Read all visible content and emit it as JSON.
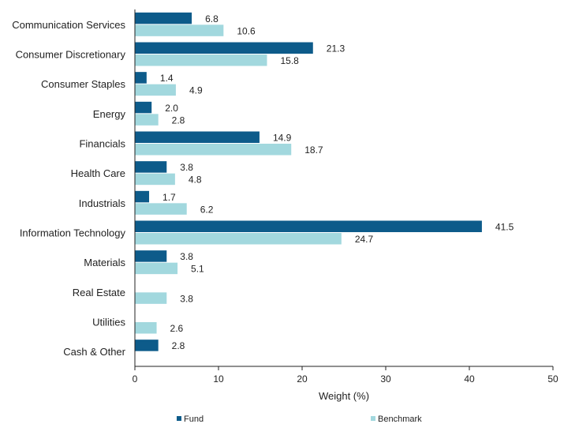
{
  "chart_data": {
    "type": "bar",
    "orientation": "horizontal",
    "categories": [
      "Communication Services",
      "Consumer Discretionary",
      "Consumer Staples",
      "Energy",
      "Financials",
      "Health Care",
      "Industrials",
      "Information Technology",
      "Materials",
      "Real Estate",
      "Utilities",
      "Cash & Other"
    ],
    "series": [
      {
        "name": "Fund",
        "color": "#0d5b8a",
        "values": [
          6.8,
          21.3,
          1.4,
          2.0,
          14.9,
          3.8,
          1.7,
          41.5,
          3.8,
          null,
          null,
          2.8
        ],
        "labels": [
          "6.8",
          "21.3",
          "1.4",
          "2.0",
          "14.9",
          "3.8",
          "1.7",
          "41.5",
          "3.8",
          "",
          "",
          "2.8"
        ]
      },
      {
        "name": "Benchmark",
        "color": "#a2d8de",
        "values": [
          10.6,
          15.8,
          4.9,
          2.8,
          18.7,
          4.8,
          6.2,
          24.7,
          5.1,
          3.8,
          2.6,
          null
        ],
        "labels": [
          "10.6",
          "15.8",
          "4.9",
          "2.8",
          "18.7",
          "4.8",
          "6.2",
          "24.7",
          "5.1",
          "3.8",
          "2.6",
          ""
        ]
      }
    ],
    "xlabel": "Weight (%)",
    "xlim": [
      0,
      50
    ],
    "xticks": [
      "0",
      "10",
      "20",
      "30",
      "40",
      "50"
    ],
    "grid": false,
    "legend_position": "bottom"
  }
}
